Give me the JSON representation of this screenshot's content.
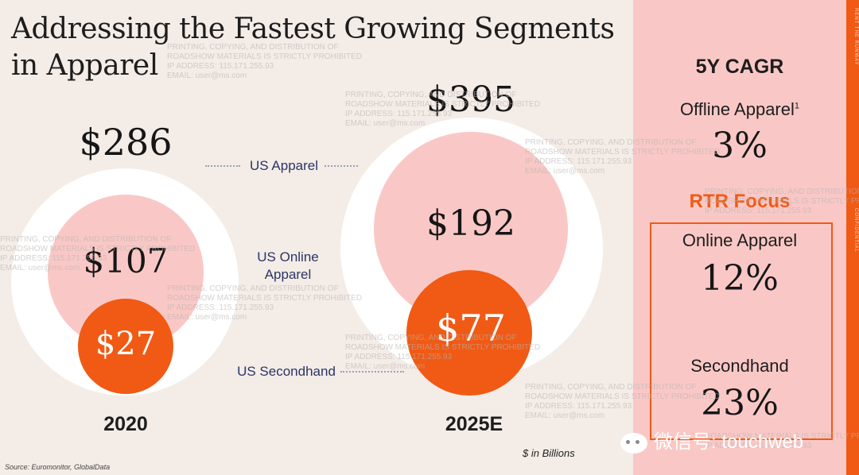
{
  "title": "Addressing the Fastest Growing Segments in Apparel",
  "periods": [
    {
      "year": "2020",
      "us_apparel": "$286",
      "us_online_apparel": "$107",
      "us_secondhand": "$27"
    },
    {
      "year": "2025E",
      "us_apparel": "$395",
      "us_online_apparel": "$192",
      "us_secondhand": "$77"
    }
  ],
  "segment_labels": {
    "us_apparel": "US Apparel",
    "us_online_apparel_line1": "US Online",
    "us_online_apparel_line2": "Apparel",
    "us_secondhand": "US Secondhand"
  },
  "units": "$ in Billions",
  "source": "Source: Euromonitor, GlobalData",
  "cagr_panel": {
    "title": "5Y CAGR",
    "offline_label": "Offline Apparel",
    "offline_footnote": "1",
    "offline_value": "3%",
    "rtr_focus": "RTR Focus",
    "online_label": "Online Apparel",
    "online_value": "12%",
    "secondhand_label": "Secondhand",
    "secondhand_value": "23%"
  },
  "watermark": {
    "line1": "PRINTING, COPYING, AND DISTRIBUTION OF",
    "line2": "ROADSHOW MATERIALS IS STRICTLY PROHIBITED",
    "line3": "IP ADDRESS: 115.171.255.93",
    "line4": "EMAIL: user@ms.com"
  },
  "side_stripe": {
    "top": "RENT THE RUNWAY",
    "bottom": "CONFIDENTIAL"
  },
  "wechat_handle": "微信号: touchweb",
  "colors": {
    "accent": "#f05a14",
    "pink": "#f9c8c6",
    "background": "#f3ece7",
    "label": "#2b3566"
  }
}
